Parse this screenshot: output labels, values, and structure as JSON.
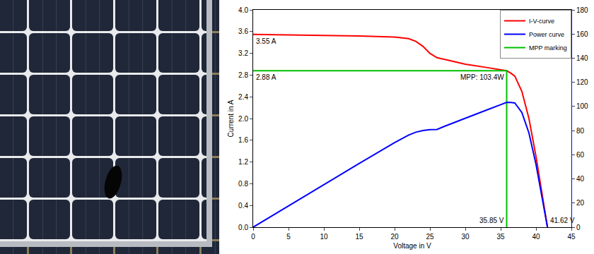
{
  "chart_data": {
    "type": "line",
    "x_label": "Voltage in V",
    "y_label": "Current in A",
    "xlim": [
      0,
      45
    ],
    "xticks": [
      0,
      5,
      10,
      15,
      20,
      25,
      30,
      35,
      40,
      45
    ],
    "ylim": [
      0,
      4
    ],
    "yticks": [
      {
        "value": 0,
        "label": "0.0"
      },
      0.4,
      0.8,
      1.2,
      1.6,
      {
        "value": 2,
        "label": "2.0"
      },
      2.4,
      2.8,
      3.2,
      3.6,
      {
        "value": 4,
        "label": "4.0"
      }
    ],
    "y2lim": [
      0,
      180
    ],
    "y2ticks": [
      0,
      20,
      40,
      60,
      80,
      100,
      120,
      140,
      160,
      180
    ],
    "grid": false,
    "legend": "top right",
    "series": [
      {
        "name": "I-V-curve",
        "color": "#ff0000",
        "x": [
          0,
          5,
          10,
          15,
          20,
          22,
          23,
          24,
          25,
          26,
          27,
          30,
          33,
          35,
          35.85,
          36.5,
          37,
          38,
          39,
          40,
          41,
          41.62
        ],
        "values": [
          3.55,
          3.54,
          3.53,
          3.52,
          3.5,
          3.47,
          3.42,
          3.33,
          3.2,
          3.12,
          3.09,
          3.0,
          2.94,
          2.9,
          2.88,
          2.83,
          2.78,
          2.5,
          2.0,
          1.3,
          0.5,
          0
        ]
      },
      {
        "name": "Power curve",
        "color": "#0000ff",
        "axis": "y2",
        "x": [
          0,
          5,
          10,
          15,
          20,
          22,
          23,
          24,
          25,
          26,
          27,
          30,
          33,
          35,
          35.85,
          36.5,
          37,
          38,
          39,
          40,
          41,
          41.62
        ],
        "values": [
          0,
          17.7,
          35.3,
          52.8,
          70,
          76.3,
          78.7,
          80,
          80.8,
          81,
          83.4,
          90,
          97,
          101.5,
          103.4,
          103.3,
          102.9,
          95,
          78,
          52,
          20.5,
          0
        ]
      },
      {
        "name": "MPP marking",
        "color": "#00c000",
        "x": [
          0,
          35.85,
          35.85
        ],
        "values": [
          2.88,
          2.88,
          0
        ]
      }
    ],
    "annotations": [
      {
        "text": "3.55 A",
        "x": 0,
        "y": 3.55
      },
      {
        "text": "2.88 A",
        "x": 0,
        "y": 2.88
      },
      {
        "text": "MPP: 103.4W",
        "x": 35.85,
        "y": 2.88
      },
      {
        "text": "35.85 V",
        "x": 35.85,
        "y": 0
      },
      {
        "text": "41.62 V",
        "x": 41.62,
        "y": 0
      }
    ]
  }
}
